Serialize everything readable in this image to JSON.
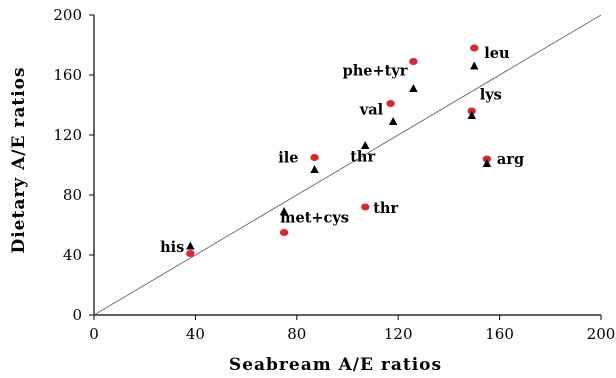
{
  "chart_data": {
    "type": "scatter",
    "xlabel": "Seabream A/E ratios",
    "ylabel": "Dietary A/E ratios",
    "xlim": [
      0,
      200
    ],
    "ylim": [
      0,
      200
    ],
    "x_ticks": [
      "0",
      "40",
      "80",
      "120",
      "160",
      "200"
    ],
    "y_ticks": [
      "0",
      "40",
      "80",
      "120",
      "160",
      "200"
    ],
    "grid": false,
    "reference_line": {
      "from": [
        0,
        0
      ],
      "to": [
        200,
        200
      ]
    },
    "series": [
      {
        "marker": "circle",
        "color": "#e0262b",
        "points": [
          {
            "x": 38,
            "y": 41,
            "label": ""
          },
          {
            "x": 75,
            "y": 55,
            "label": ""
          },
          {
            "x": 87,
            "y": 105,
            "label": "ile"
          },
          {
            "x": 107,
            "y": 72,
            "label": "thr"
          },
          {
            "x": 117,
            "y": 141,
            "label": ""
          },
          {
            "x": 126,
            "y": 169,
            "label": ""
          },
          {
            "x": 149,
            "y": 136,
            "label": ""
          },
          {
            "x": 150,
            "y": 178,
            "label": ""
          },
          {
            "x": 155,
            "y": 104,
            "label": "arg"
          }
        ]
      },
      {
        "marker": "triangle",
        "color": "#000000",
        "points": [
          {
            "x": 38,
            "y": 46,
            "label": "his"
          },
          {
            "x": 75,
            "y": 69,
            "label": "met+cys"
          },
          {
            "x": 87,
            "y": 97,
            "label": ""
          },
          {
            "x": 107,
            "y": 113,
            "label": "thr"
          },
          {
            "x": 118,
            "y": 129,
            "label": "val"
          },
          {
            "x": 126,
            "y": 151,
            "label": "phe+tyr"
          },
          {
            "x": 149,
            "y": 133,
            "label": "lys"
          },
          {
            "x": 150,
            "y": 166,
            "label": "leu"
          },
          {
            "x": 155,
            "y": 101,
            "label": ""
          }
        ]
      }
    ]
  }
}
